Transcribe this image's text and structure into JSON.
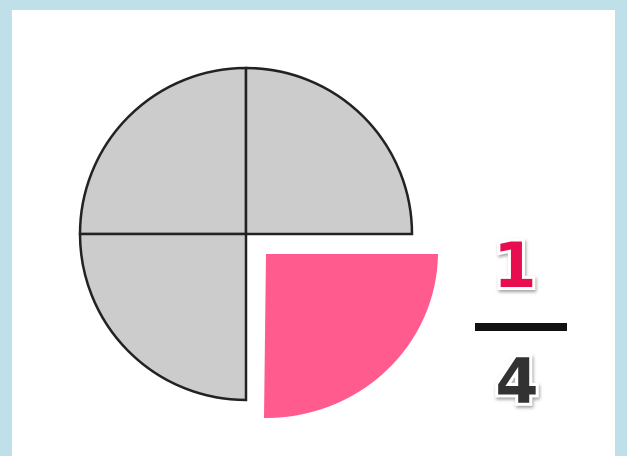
{
  "fraction": {
    "numerator": "1",
    "denominator": "4"
  }
}
